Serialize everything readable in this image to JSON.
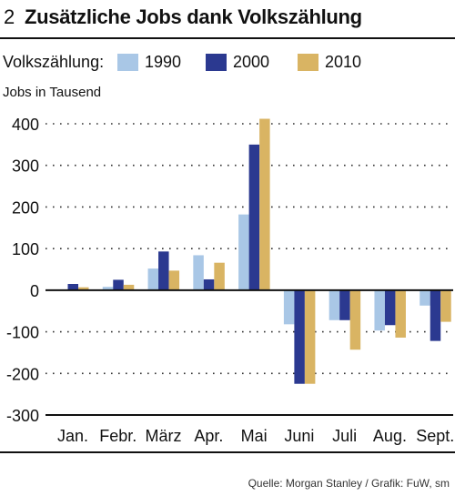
{
  "header": {
    "figure_number": "2",
    "title": "Zusätzliche Jobs dank  Volkszählung"
  },
  "legend": {
    "label": "Volkszählung:",
    "items": [
      {
        "name": "1990",
        "color": "#a9c7e6"
      },
      {
        "name": "2000",
        "color": "#2b3990"
      },
      {
        "name": "2010",
        "color": "#d9b463"
      }
    ]
  },
  "source": "Quelle: Morgan Stanley / Grafik: FuW, sm",
  "chart_data": {
    "type": "bar",
    "ylabel": "Jobs in Tausend",
    "ylim": [
      -300,
      420
    ],
    "yticks": [
      400,
      300,
      200,
      100,
      0,
      -100,
      -200,
      -300
    ],
    "grid": true,
    "categories": [
      "Jan.",
      "Febr.",
      "März",
      "Apr.",
      "Mai",
      "Juni",
      "Juli",
      "Aug.",
      "Sept."
    ],
    "series": [
      {
        "name": "1990",
        "color": "#a9c7e6",
        "values": [
          0,
          8,
          52,
          84,
          182,
          -82,
          -72,
          -97,
          -37
        ]
      },
      {
        "name": "2000",
        "color": "#2b3990",
        "values": [
          15,
          25,
          93,
          26,
          350,
          -225,
          -72,
          -84,
          -122
        ]
      },
      {
        "name": "2010",
        "color": "#d9b463",
        "values": [
          7,
          13,
          47,
          66,
          412,
          -225,
          -143,
          -114,
          -76
        ]
      }
    ]
  }
}
